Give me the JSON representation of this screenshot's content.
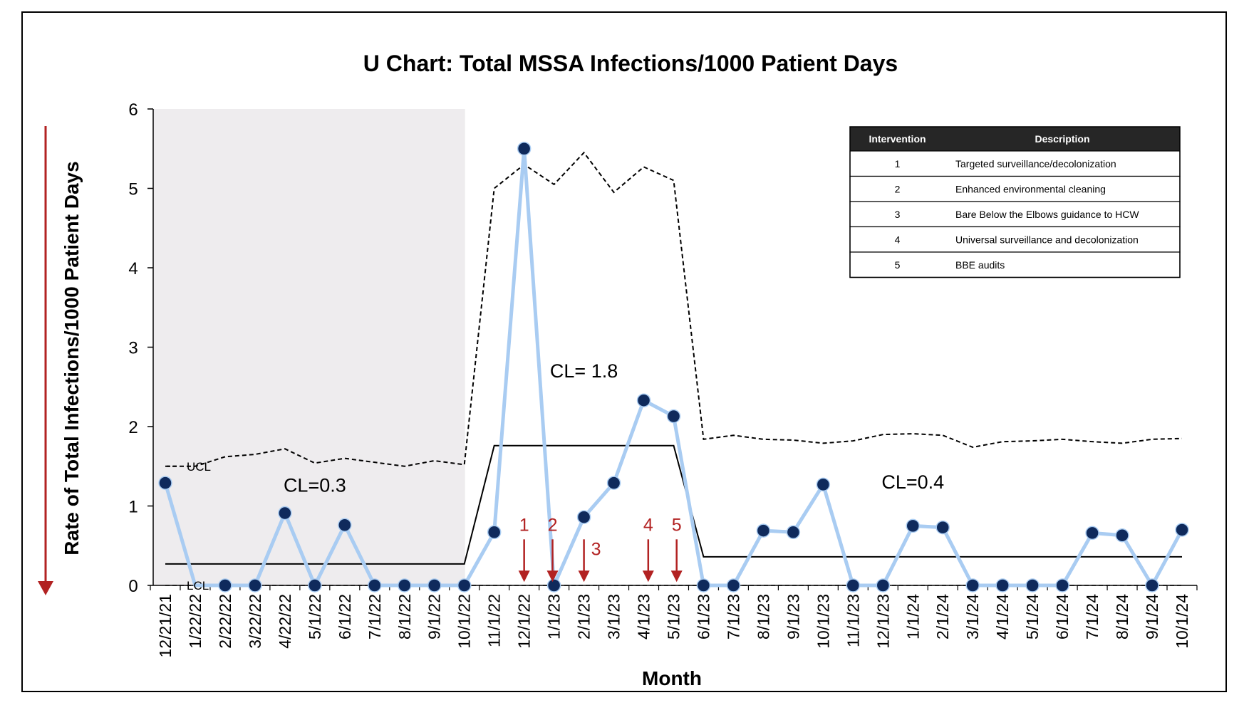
{
  "colors": {
    "data_line": "#a9ccf2",
    "data_point": "#0f2a5c",
    "center_line": "#000000",
    "limit_line": "#000000",
    "intervention": "#b22222",
    "shade": "#eeecee",
    "table_header_bg": "#262626"
  },
  "chart_data": {
    "type": "line",
    "title": "U Chart: Total MSSA Infections/1000 Patient Days",
    "xlabel": "Month",
    "ylabel": "Rate of Total Infections/1000 Patient Days",
    "ylim": [
      0,
      6
    ],
    "yticks": [
      0,
      1,
      2,
      3,
      4,
      5,
      6
    ],
    "grid": false,
    "categories": [
      "12/21/21",
      "1/22/22",
      "2/22/22",
      "3/22/22",
      "4/22/22",
      "5/1/22",
      "6/1/22",
      "7/1/22",
      "8/1/22",
      "9/1/22",
      "10/1/22",
      "11/1/22",
      "12/1/22",
      "1/1/23",
      "2/1/23",
      "3/1/23",
      "4/1/23",
      "5/1/23",
      "6/1/23",
      "7/1/23",
      "8/1/23",
      "9/1/23",
      "10/1/23",
      "11/1/23",
      "12/1/23",
      "1/1/24",
      "2/1/24",
      "3/1/24",
      "4/1/24",
      "5/1/24",
      "6/1/24",
      "7/1/24",
      "8/1/24",
      "9/1/24",
      "10/1/24"
    ],
    "series": [
      {
        "values": [
          1.29,
          0,
          0,
          0,
          0.91,
          0,
          0.76,
          0,
          0,
          0,
          0,
          0.67,
          5.5,
          0,
          0.86,
          1.29,
          2.33,
          2.13,
          0,
          0,
          0.69,
          0.67,
          1.27,
          0,
          0,
          0.75,
          0.73,
          0,
          0,
          0,
          0,
          0.66,
          0.63,
          0,
          0.7
        ],
        "markers_shown": [
          true,
          false,
          true,
          true,
          true,
          true,
          true,
          true,
          true,
          true,
          true,
          true,
          true,
          true,
          true,
          true,
          true,
          true,
          true,
          true,
          true,
          true,
          true,
          true,
          true,
          true,
          true,
          true,
          true,
          true,
          true,
          true,
          true,
          true,
          true
        ]
      }
    ],
    "center_line": [
      0.27,
      0.27,
      0.27,
      0.27,
      0.27,
      0.27,
      0.27,
      0.27,
      0.27,
      0.27,
      0.27,
      1.76,
      1.76,
      1.76,
      1.76,
      1.76,
      1.76,
      1.76,
      0.36,
      0.36,
      0.36,
      0.36,
      0.36,
      0.36,
      0.36,
      0.36,
      0.36,
      0.36,
      0.36,
      0.36,
      0.36,
      0.36,
      0.36,
      0.36,
      0.36
    ],
    "ucl": [
      1.5,
      1.5,
      1.62,
      1.65,
      1.72,
      1.54,
      1.6,
      1.55,
      1.5,
      1.57,
      1.52,
      5.0,
      5.3,
      5.05,
      5.45,
      4.95,
      5.27,
      5.1,
      1.84,
      1.89,
      1.84,
      1.83,
      1.79,
      1.82,
      1.9,
      1.91,
      1.89,
      1.74,
      1.81,
      1.82,
      1.84,
      1.81,
      1.79,
      1.84,
      1.85
    ],
    "lcl": [
      0,
      0,
      0,
      0,
      0,
      0,
      0,
      0,
      0,
      0,
      0,
      0,
      0,
      0,
      0,
      0,
      0,
      0,
      0,
      0,
      0,
      0,
      0,
      0,
      0,
      0,
      0,
      0,
      0,
      0,
      0,
      0,
      0,
      0,
      0
    ],
    "shaded_category_range": [
      "12/21/21",
      "10/1/22"
    ],
    "annotations": {
      "cl_labels": [
        {
          "text": "CL=0.3",
          "x_index": 5,
          "y": 1.18
        },
        {
          "text": "CL= 1.8",
          "x_index": 14,
          "y": 2.62
        },
        {
          "text": "CL=0.4",
          "x_index": 25,
          "y": 1.22
        }
      ],
      "ucl_label": "UCL",
      "lcl_label": "LCL",
      "interventions": [
        {
          "label": "1",
          "x_index": 12.0
        },
        {
          "label": "2",
          "x_index": 12.95
        },
        {
          "label": "3",
          "x_index": 14.0
        },
        {
          "label": "4",
          "x_index": 16.15
        },
        {
          "label": "5",
          "x_index": 17.1
        }
      ]
    },
    "intervention_table": {
      "headers": [
        "Intervention",
        "Description"
      ],
      "rows": [
        [
          "1",
          "Targeted  surveillance/decolonization"
        ],
        [
          "2",
          "Enhanced environmental cleaning"
        ],
        [
          "3",
          "Bare Below the Elbows guidance to HCW"
        ],
        [
          "4",
          "Universal surveillance and decolonization"
        ],
        [
          "5",
          "BBE audits"
        ]
      ],
      "placement": "top-right"
    }
  }
}
